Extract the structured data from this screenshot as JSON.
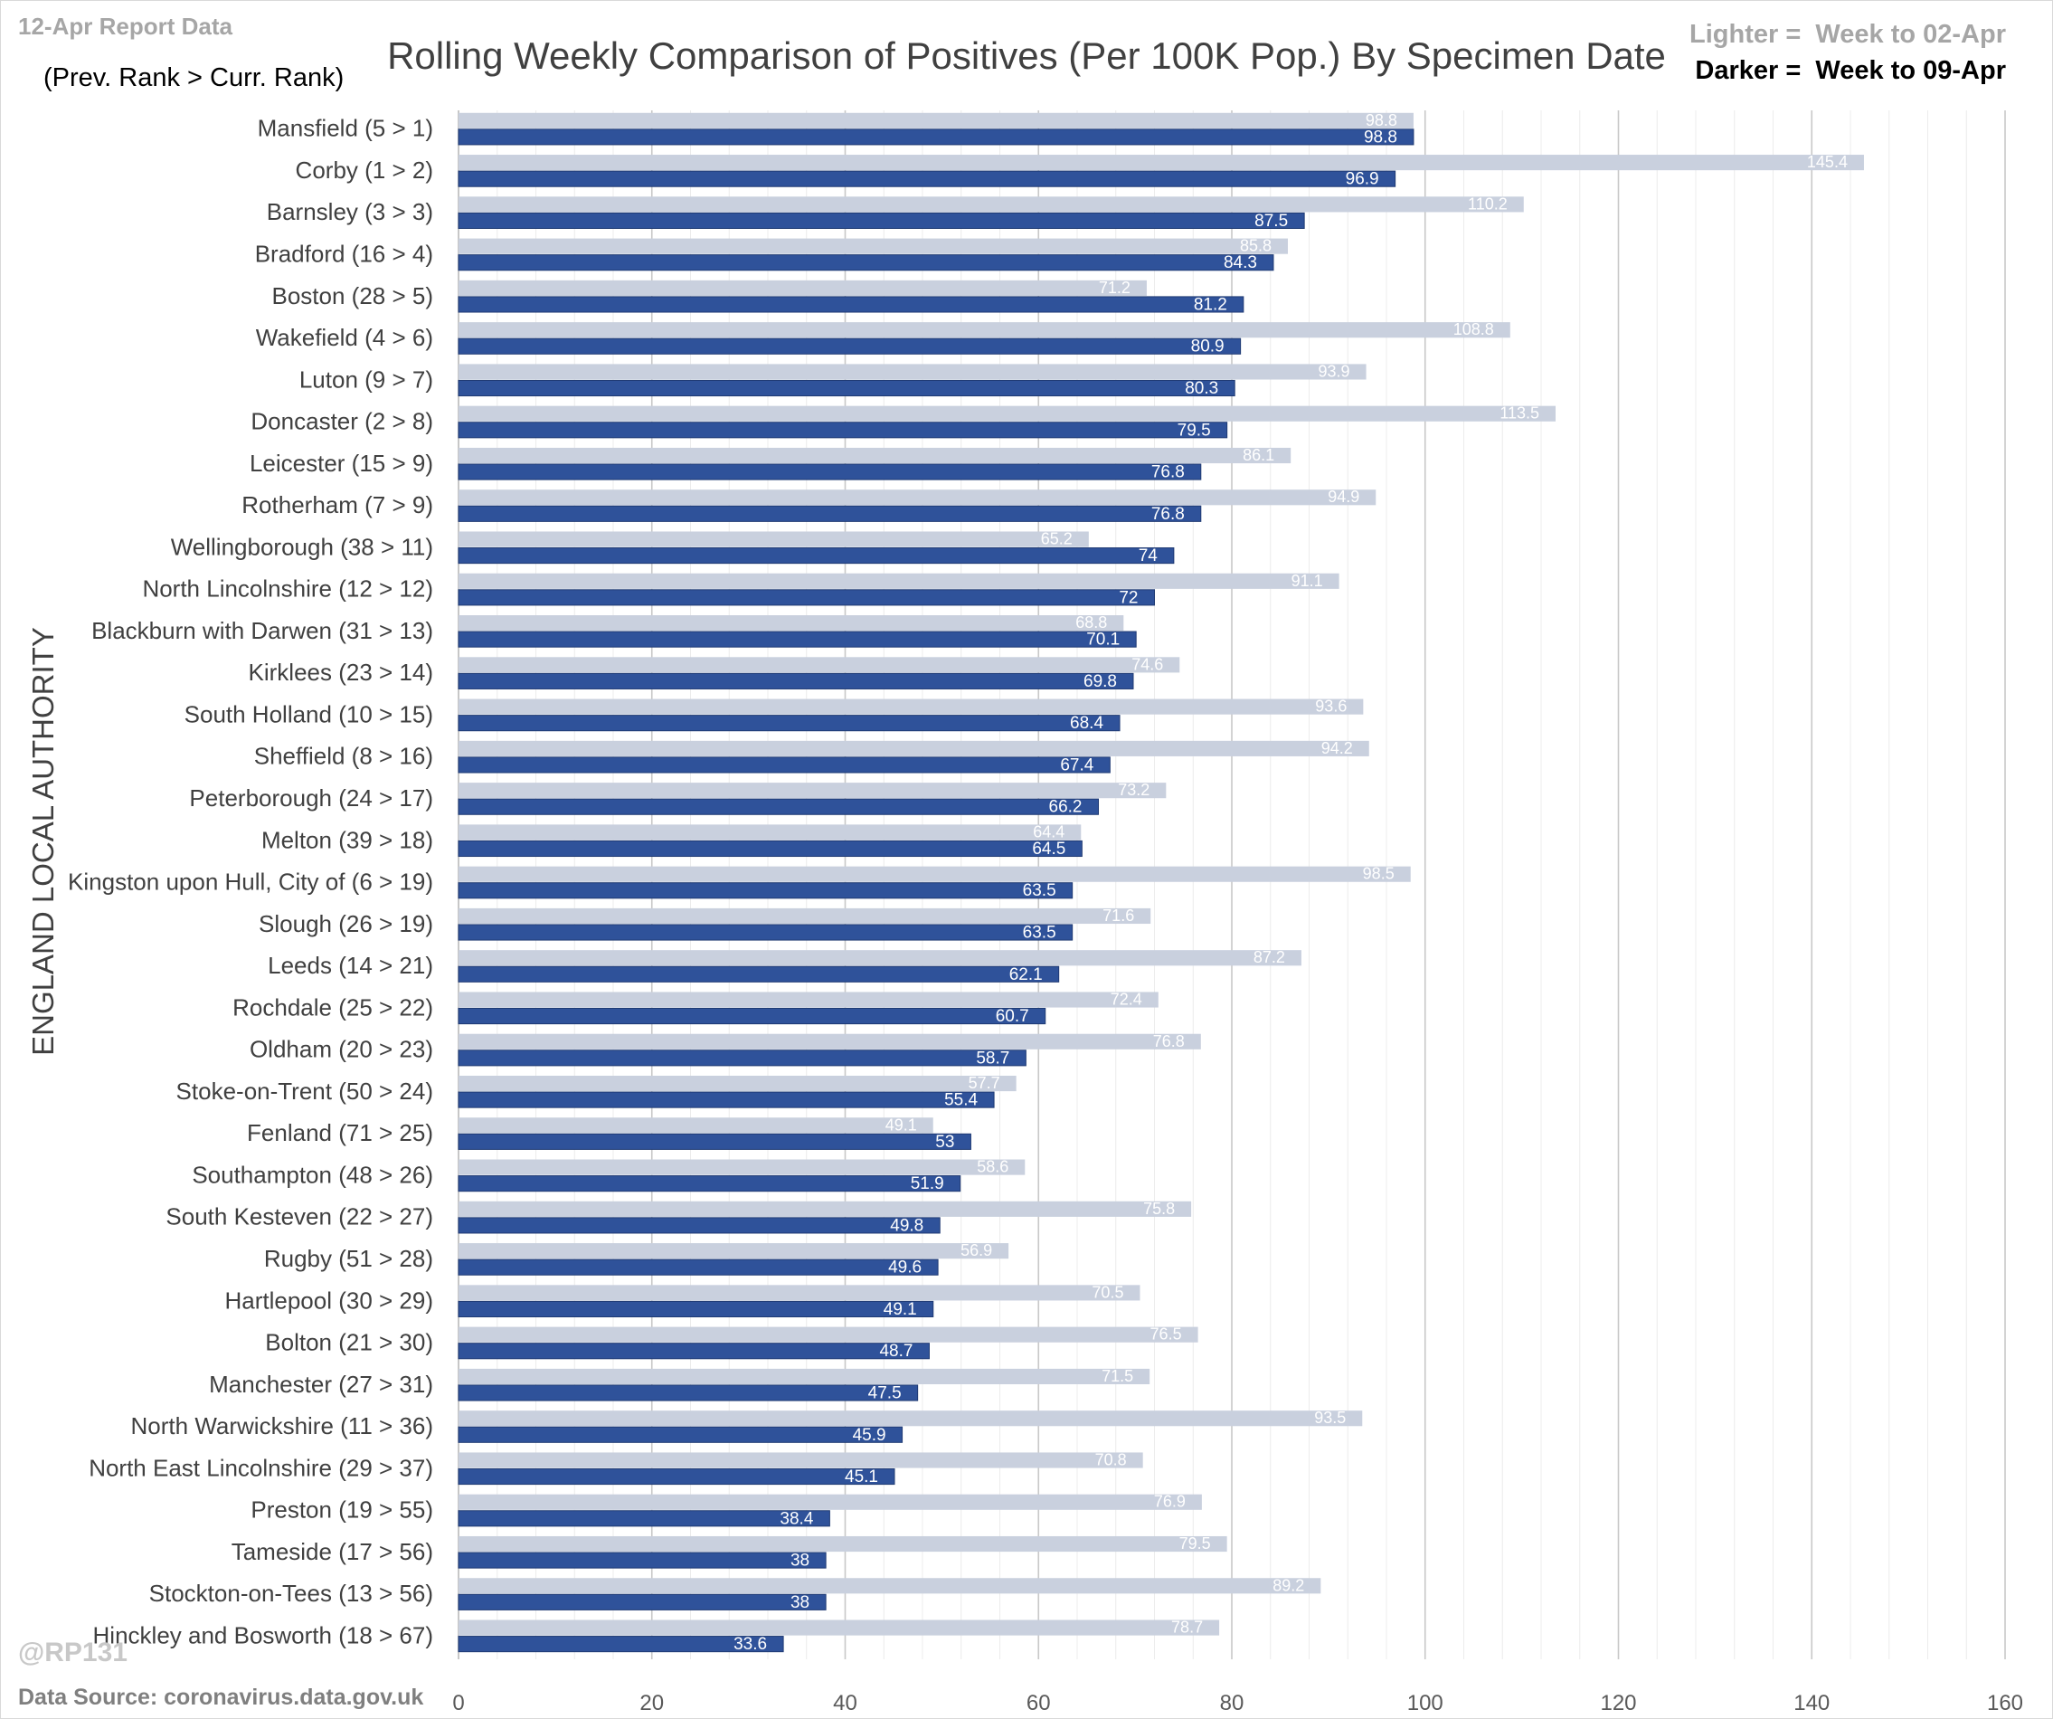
{
  "header": {
    "report_tag": "12-Apr Report Data",
    "rank_note": "(Prev. Rank > Curr. Rank)",
    "legend_light": "Lighter =  Week to 02-Apr",
    "legend_dark": "Darker =  Week to 09-Apr",
    "watermark": "@RP131",
    "source": "Data Source: coronavirus.data.gov.uk"
  },
  "colors": {
    "previous": "#c9d0de",
    "current": "#2f529a",
    "grid": "#d9d9d9"
  },
  "chart_data": {
    "type": "bar",
    "orientation": "horizontal",
    "title": "Rolling Weekly Comparison of Positives  (Per 100K Pop.) By Specimen Date",
    "ylabel": "ENGLAND LOCAL AUTHORITY",
    "xlabel": "",
    "xlim": [
      0,
      160
    ],
    "x_ticks": [
      0,
      20,
      40,
      60,
      80,
      100,
      120,
      140,
      160
    ],
    "grid": true,
    "categories": [
      "Mansfield (5 > 1)",
      "Corby (1 > 2)",
      "Barnsley (3 > 3)",
      "Bradford (16 > 4)",
      "Boston (28 > 5)",
      "Wakefield (4 > 6)",
      "Luton (9 > 7)",
      "Doncaster (2 > 8)",
      "Leicester (15 > 9)",
      "Rotherham (7 > 9)",
      "Wellingborough (38 > 11)",
      "North Lincolnshire (12 > 12)",
      "Blackburn with Darwen (31 > 13)",
      "Kirklees (23 > 14)",
      "South Holland (10 > 15)",
      "Sheffield (8 > 16)",
      "Peterborough (24 > 17)",
      "Melton (39 > 18)",
      "Kingston upon Hull, City of (6 > 19)",
      "Slough (26 > 19)",
      "Leeds (14 > 21)",
      "Rochdale (25 > 22)",
      "Oldham (20 > 23)",
      "Stoke-on-Trent (50 > 24)",
      "Fenland (71 > 25)",
      "Southampton (48 > 26)",
      "South Kesteven (22 > 27)",
      "Rugby (51 > 28)",
      "Hartlepool (30 > 29)",
      "Bolton (21 > 30)",
      "Manchester (27 > 31)",
      "North Warwickshire (11 > 36)",
      "North East Lincolnshire (29 > 37)",
      "Preston (19 > 55)",
      "Tameside (17 > 56)",
      "Stockton-on-Tees (13 > 56)",
      "Hinckley and Bosworth (18 > 67)"
    ],
    "series": [
      {
        "name": "Week to 02-Apr",
        "values": [
          98.8,
          145.4,
          110.2,
          85.8,
          71.2,
          108.8,
          93.9,
          113.5,
          86.1,
          94.9,
          65.2,
          91.1,
          68.8,
          74.6,
          93.6,
          94.2,
          73.2,
          64.4,
          98.5,
          71.6,
          87.2,
          72.4,
          76.8,
          57.7,
          49.1,
          58.6,
          75.8,
          56.9,
          70.5,
          76.5,
          71.5,
          93.5,
          70.8,
          76.9,
          79.5,
          89.2,
          78.7
        ]
      },
      {
        "name": "Week to 09-Apr",
        "values": [
          98.8,
          96.9,
          87.5,
          84.3,
          81.2,
          80.9,
          80.3,
          79.5,
          76.8,
          76.8,
          74,
          72,
          70.1,
          69.8,
          68.4,
          67.4,
          66.2,
          64.5,
          63.5,
          63.5,
          62.1,
          60.7,
          58.7,
          55.4,
          53,
          51.9,
          49.8,
          49.6,
          49.1,
          48.7,
          47.5,
          45.9,
          45.1,
          38.4,
          38,
          38,
          33.6
        ]
      }
    ]
  }
}
